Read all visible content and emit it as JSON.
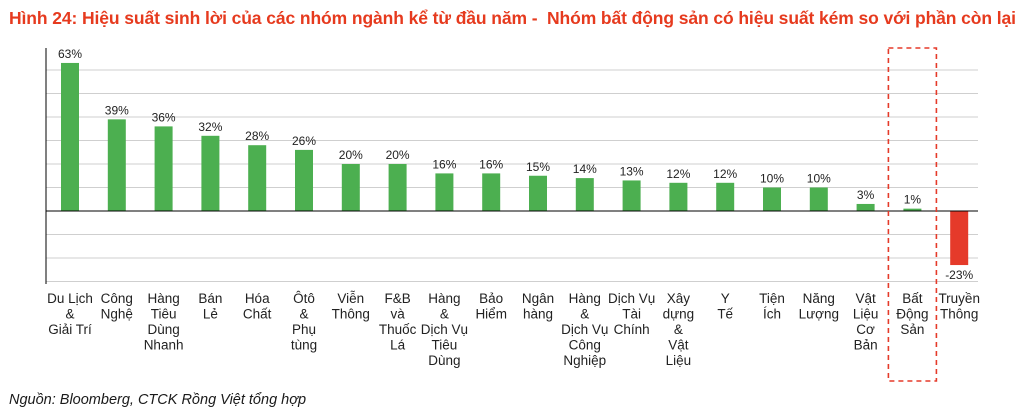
{
  "title": "Hình 24: Hiệu suất sinh lời của các nhóm ngành kể từ đầu năm -  Nhóm bất động sản có hiệu suất kém so với phần còn lại",
  "source": "Nguồn: Bloomberg, CTCK Rồng Việt tổng hợp",
  "colors": {
    "positive": "#4caf50",
    "negative": "#e53a2a",
    "highlight_box": "#e53a2a",
    "title": "#e63a1e",
    "axis": "#000000",
    "grid": "#cfcfcf"
  },
  "chart_data": {
    "type": "bar",
    "categories": [
      [
        "Du Lịch",
        "&",
        "Giải Trí"
      ],
      [
        "Công",
        "Nghệ"
      ],
      [
        "Hàng",
        "Tiêu",
        "Dùng",
        "Nhanh"
      ],
      [
        "Bán",
        "Lẻ"
      ],
      [
        "Hóa",
        "Chất"
      ],
      [
        "Ôtô",
        "&",
        "Phụ",
        "tùng"
      ],
      [
        "Viễn",
        "Thông"
      ],
      [
        "F&B",
        "và",
        "Thuốc",
        "Lá"
      ],
      [
        "Hàng",
        "&",
        "Dịch Vụ",
        "Tiêu",
        "Dùng"
      ],
      [
        "Bảo",
        "Hiểm"
      ],
      [
        "Ngân",
        "hàng"
      ],
      [
        "Hàng",
        "&",
        "Dịch Vụ",
        "Công",
        "Nghiệp"
      ],
      [
        "Dịch Vụ",
        "Tài",
        "Chính"
      ],
      [
        "Xây",
        "dựng",
        "&",
        "Vật",
        "Liệu"
      ],
      [
        "Y",
        "Tế"
      ],
      [
        "Tiện",
        "Ích"
      ],
      [
        "Năng",
        "Lượng"
      ],
      [
        "Vật",
        "Liệu",
        "Cơ",
        "Bản"
      ],
      [
        "Bất",
        "Động",
        "Sản"
      ],
      [
        "Truyền",
        "Thông"
      ]
    ],
    "values": [
      63,
      39,
      36,
      32,
      28,
      26,
      20,
      20,
      16,
      16,
      15,
      14,
      13,
      12,
      12,
      10,
      10,
      3,
      1,
      -23
    ],
    "value_labels": [
      "63%",
      "39%",
      "36%",
      "32%",
      "28%",
      "26%",
      "20%",
      "20%",
      "16%",
      "16%",
      "15%",
      "14%",
      "13%",
      "12%",
      "12%",
      "10%",
      "10%",
      "3%",
      "1%",
      "-23%"
    ],
    "highlighted_category_index": 18,
    "ylim": [
      -30,
      70
    ],
    "grid": true,
    "xlabel": "",
    "ylabel": ""
  }
}
